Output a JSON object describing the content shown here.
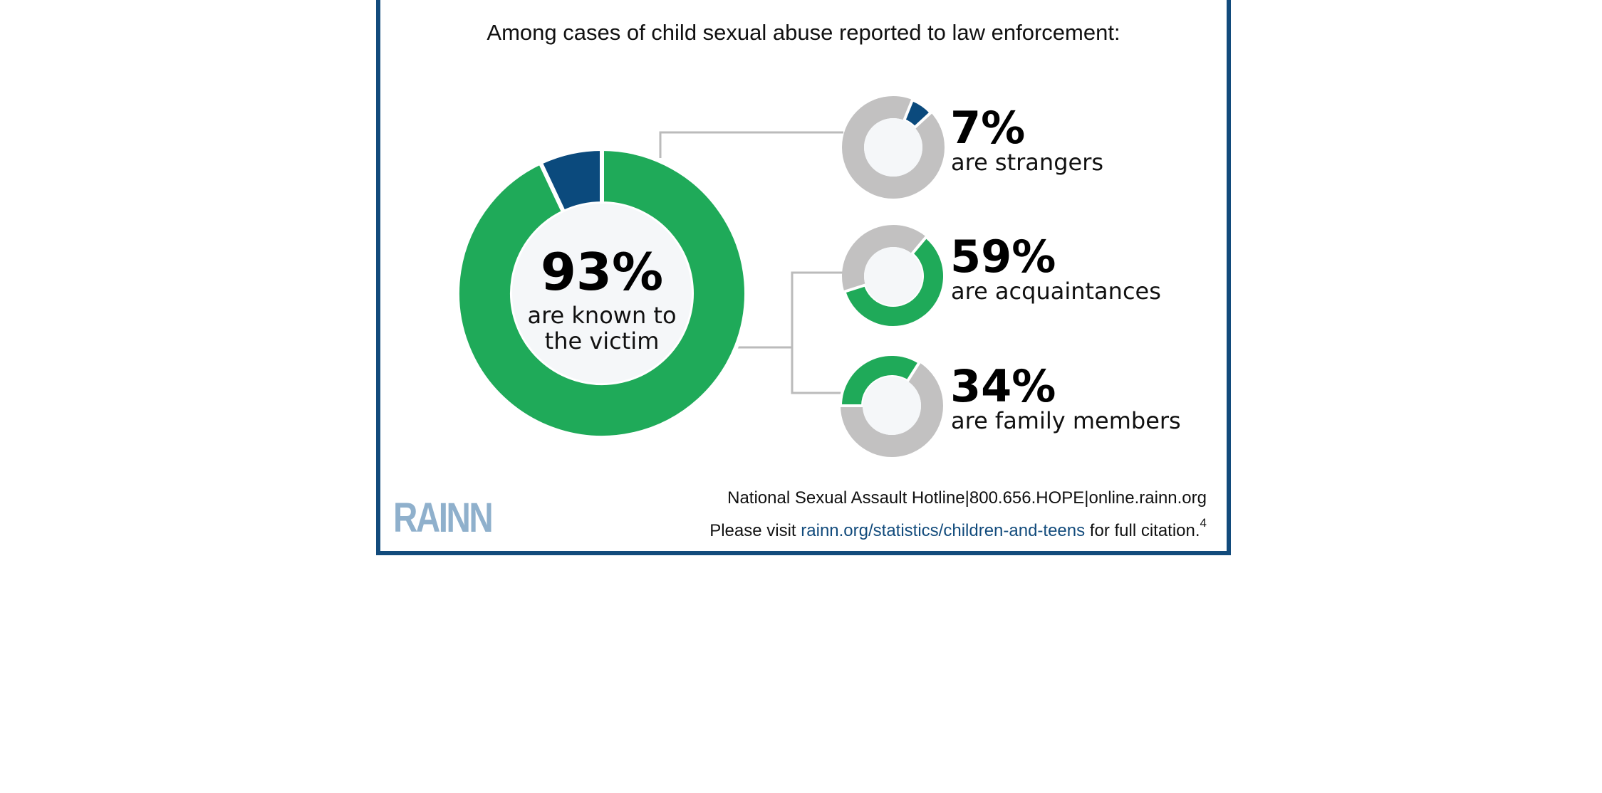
{
  "headline": "Among cases of child sexual abuse reported to law enforcement:",
  "colors": {
    "green": "#1faa59",
    "navy": "#0b4a7d",
    "gray": "#c2c1c1",
    "center_fill": "#f5f7f9",
    "border": "#124b7c",
    "connector": "#bbbbbb"
  },
  "chart_data": [
    {
      "type": "pie",
      "style": "donut",
      "slices": [
        {
          "label": "are known to the victim",
          "value": 93,
          "color": "#1faa59"
        },
        {
          "label": "are strangers",
          "value": 7,
          "color": "#0b4a7d"
        }
      ],
      "center_value": "93%",
      "center_label_lines": [
        "are known to",
        "the victim"
      ]
    },
    {
      "type": "pie",
      "style": "donut",
      "value": 7,
      "value_text": "7%",
      "label": "are strangers",
      "color": "#0b4a7d"
    },
    {
      "type": "pie",
      "style": "donut",
      "value": 59,
      "value_text": "59%",
      "label": "are acquaintances",
      "color": "#1faa59"
    },
    {
      "type": "pie",
      "style": "donut",
      "value": 34,
      "value_text": "34%",
      "label": "are family members",
      "color": "#1faa59"
    }
  ],
  "logo": "RAINN",
  "footer": {
    "hotline": "National Sexual Assault Hotline|800.656.HOPE|online.rainn.org",
    "visit_prefix": "Please visit",
    "visit_link": "rainn.org/statistics/children-and-teens",
    "visit_suffix": "for full citation.",
    "footnote": "4"
  }
}
